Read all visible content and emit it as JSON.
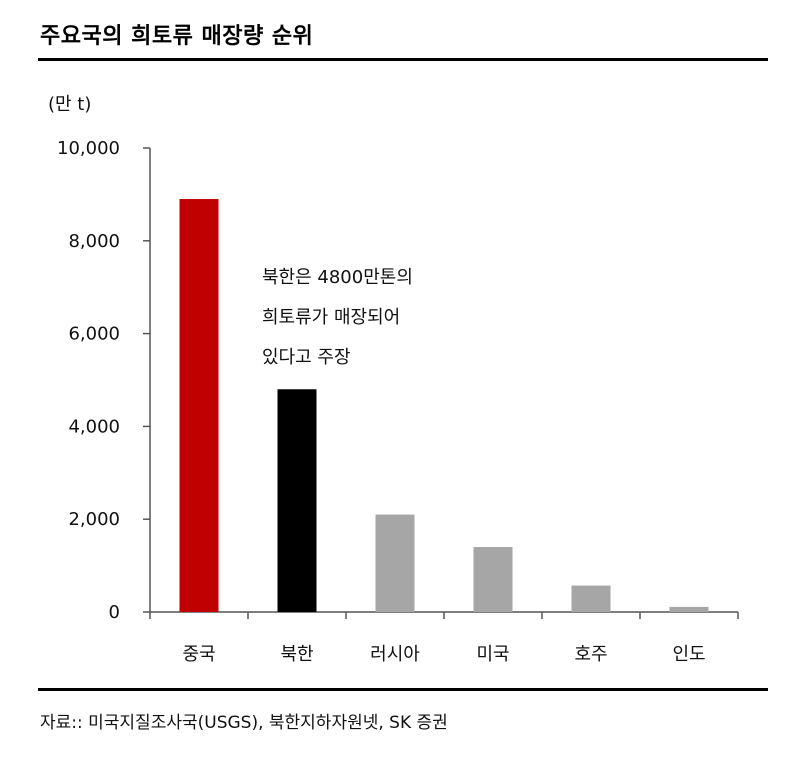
{
  "title": "주요국의 희토류 매장량 순위",
  "source": "자료:: 미국지질조사국(USGS), 북한지하자원넷, SK 증권",
  "chart_data": {
    "type": "bar",
    "title": "주요국의 희토류 매장량 순위",
    "ylabel": "(만 t)",
    "xlabel": "",
    "categories": [
      "중국",
      "북한",
      "러시아",
      "미국",
      "호주",
      "인도"
    ],
    "values": [
      8900,
      4800,
      2100,
      1400,
      570,
      110
    ],
    "bar_colors": [
      "#c00000",
      "#000000",
      "#a6a6a6",
      "#a6a6a6",
      "#a6a6a6",
      "#a6a6a6"
    ],
    "ylim": [
      0,
      10000
    ],
    "yticks": [
      0,
      2000,
      4000,
      6000,
      8000,
      10000
    ],
    "ytick_labels": [
      "0",
      "2,000",
      "4,000",
      "6,000",
      "8,000",
      "10,000"
    ],
    "grid": false,
    "legend": "none",
    "annotation": [
      "북한은 4800만톤의",
      "희토류가 매장되어",
      "있다고 주장"
    ]
  }
}
